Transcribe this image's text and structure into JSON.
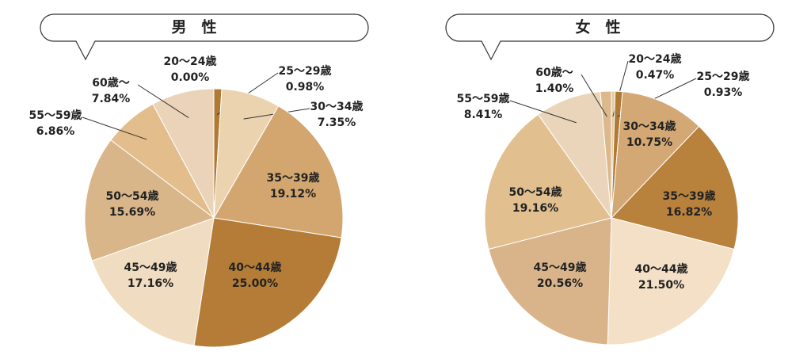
{
  "chart_data": [
    {
      "type": "pie",
      "title": "男　性",
      "categories": [
        "20〜24歳",
        "25〜29歳",
        "30〜34歳",
        "35〜39歳",
        "40〜44歳",
        "45〜49歳",
        "50〜54歳",
        "55〜59歳",
        "60歳〜"
      ],
      "values": [
        0,
        0.98,
        7.35,
        19.12,
        25,
        17.16,
        15.69,
        6.86,
        7.84
      ],
      "value_labels": [
        "0.00%",
        "0.98%",
        "7.35%",
        "19.12%",
        "25.00%",
        "17.16%",
        "15.69%",
        "6.86%",
        "7.84%"
      ],
      "colors": [
        "#b07a35",
        "#b07a35",
        "#ecd3b0",
        "#d2a66e",
        "#b47c37",
        "#f0dcc0",
        "#d9b68a",
        "#e3bd8c",
        "#ead3b8"
      ]
    },
    {
      "type": "pie",
      "title": "女　性",
      "categories": [
        "20〜24歳",
        "25〜29歳",
        "30〜34歳",
        "35〜39歳",
        "40〜44歳",
        "45〜49歳",
        "50〜54歳",
        "55〜59歳",
        "60歳〜"
      ],
      "values": [
        0.47,
        0.93,
        10.75,
        16.82,
        21.5,
        20.56,
        19.16,
        8.41,
        1.4
      ],
      "value_labels": [
        "0.47%",
        "0.93%",
        "10.75%",
        "16.82%",
        "21.50%",
        "20.56%",
        "19.16%",
        "8.41%",
        "1.40%"
      ],
      "colors": [
        "#e6c9a0",
        "#b07a35",
        "#d4a874",
        "#b8813c",
        "#f3e0c6",
        "#d9b48a",
        "#e2bf8f",
        "#ebd5ba",
        "#dbb98d"
      ]
    }
  ]
}
